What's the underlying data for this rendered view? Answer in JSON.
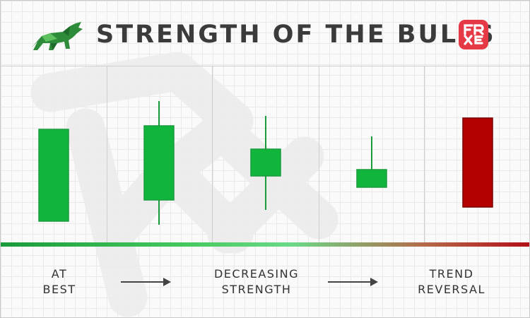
{
  "title": "STRENGTH OF THE BULLS",
  "colors": {
    "bull_green": "#0fb63b",
    "bear_red": "#b30000",
    "wick": "#1a9b3c",
    "title": "#3b3b3b"
  },
  "icons": {
    "logo": "frxe-logo",
    "bull": "bull-icon"
  },
  "candles": [
    {
      "type": "bullish",
      "open": 30,
      "close": 160,
      "high": 160,
      "low": 30
    },
    {
      "type": "bullish",
      "open": 60,
      "close": 165,
      "high": 200,
      "low": 25
    },
    {
      "type": "bullish",
      "open": 94,
      "close": 132,
      "high": 179,
      "low": 46
    },
    {
      "type": "bullish",
      "open": 78,
      "close": 103,
      "high": 150,
      "low": 78
    },
    {
      "type": "bearish",
      "open": 176,
      "close": 50,
      "high": 176,
      "low": 50
    }
  ],
  "stages": [
    {
      "line1": "AT",
      "line2": "BEST"
    },
    {
      "line1": "DECREASING",
      "line2": "STRENGTH"
    },
    {
      "line1": "TREND",
      "line2": "REVERSAL"
    }
  ]
}
